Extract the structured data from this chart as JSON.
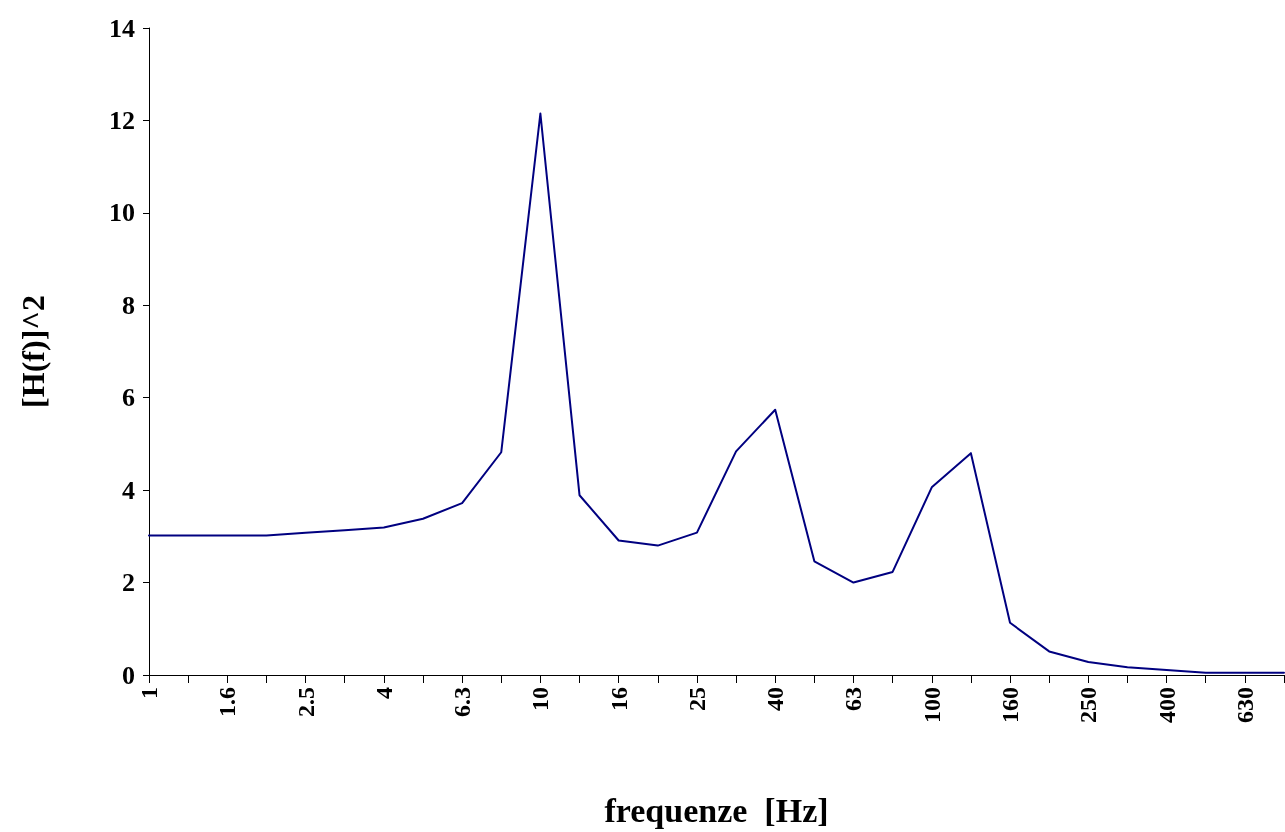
{
  "chart_data": {
    "type": "line",
    "xlabel": "frequenze  [Hz]",
    "ylabel": "[H(f)]^2",
    "categories": [
      "1",
      null,
      "1.6",
      null,
      "2.5",
      null,
      "4",
      null,
      "6.3",
      null,
      "10",
      null,
      "16",
      null,
      "25",
      null,
      "40",
      null,
      "63",
      null,
      "100",
      null,
      "160",
      null,
      "250",
      null,
      "400",
      null,
      "630",
      null
    ],
    "series": [
      {
        "color": "#000080",
        "values": [
          3.02,
          3.02,
          3.02,
          3.02,
          3.08,
          3.13,
          3.19,
          3.38,
          3.72,
          4.82,
          12.15,
          3.89,
          2.91,
          2.8,
          3.08,
          4.84,
          5.74,
          2.46,
          2.0,
          2.23,
          4.06,
          4.8,
          1.13,
          0.51,
          0.28,
          0.17,
          0.11,
          0.05,
          0.05,
          0.05
        ]
      }
    ],
    "ylim": [
      0,
      14
    ],
    "yticks": [
      0,
      2,
      4,
      6,
      8,
      10,
      12,
      14
    ],
    "grid": false,
    "marker": "none",
    "line_style": "solid"
  }
}
